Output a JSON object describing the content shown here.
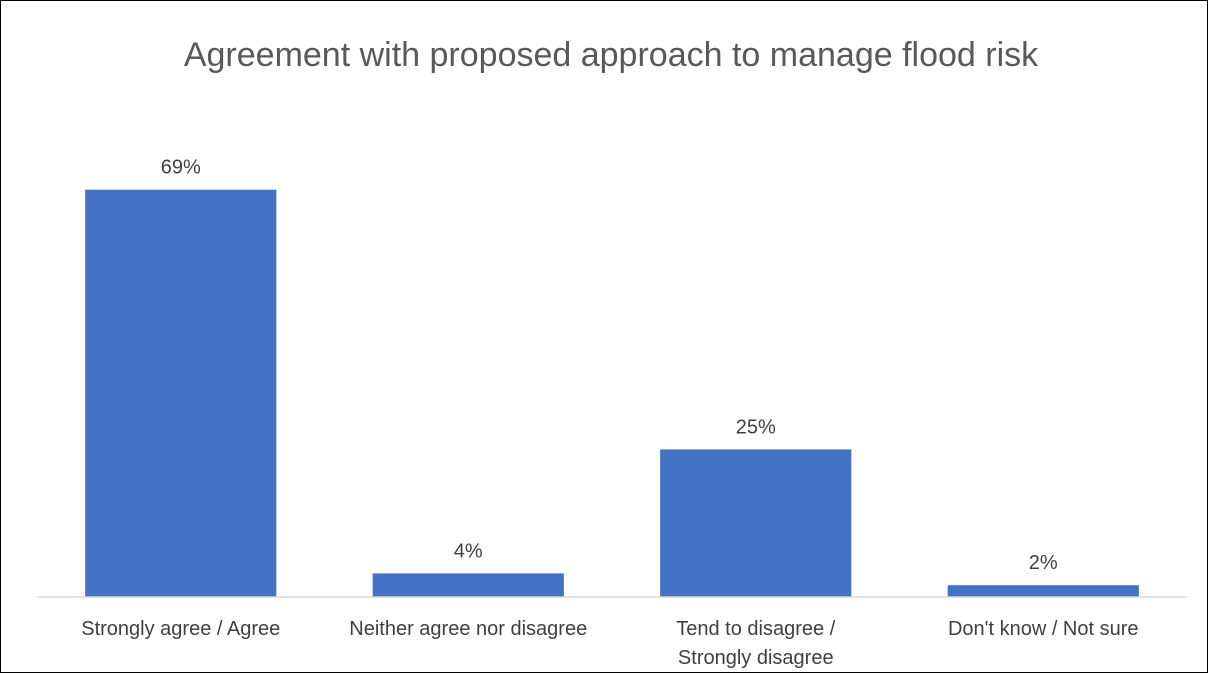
{
  "chart_data": {
    "type": "bar",
    "title": "Agreement with proposed approach to manage flood risk",
    "categories": [
      [
        "Strongly agree / Agree"
      ],
      [
        "Neither agree nor disagree"
      ],
      [
        "Tend to disagree /",
        "Strongly disagree"
      ],
      [
        "Don't know / Not sure"
      ]
    ],
    "values": [
      69,
      4,
      25,
      2
    ],
    "data_labels": [
      "69%",
      "4%",
      "25%",
      "2%"
    ],
    "xlabel": "",
    "ylabel": "",
    "ylim": [
      0,
      72
    ],
    "grid": false,
    "legend": "none",
    "colors": {
      "bar": "#4472C4",
      "axis": "#D9D9D9",
      "text": "#404040",
      "title": "#595959"
    }
  }
}
